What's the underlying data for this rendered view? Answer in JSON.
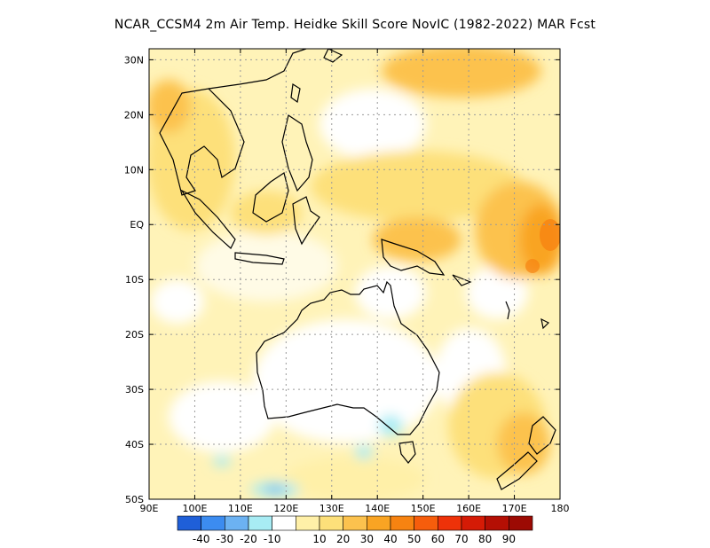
{
  "title": "NCAR_CCSM4  2m Air Temp. Heidke Skill Score NovIC (1982-2022) MAR Fcst",
  "map": {
    "lon_range": [
      90,
      180
    ],
    "lat_range": [
      -50,
      32
    ],
    "lon_ticks": [
      {
        "value": 90,
        "label": "90E"
      },
      {
        "value": 100,
        "label": "100E"
      },
      {
        "value": 110,
        "label": "110E"
      },
      {
        "value": 120,
        "label": "120E"
      },
      {
        "value": 130,
        "label": "130E"
      },
      {
        "value": 140,
        "label": "140E"
      },
      {
        "value": 150,
        "label": "150E"
      },
      {
        "value": 160,
        "label": "160E"
      },
      {
        "value": 170,
        "label": "170E"
      },
      {
        "value": 180,
        "label": "180"
      }
    ],
    "lat_ticks": [
      {
        "value": 30,
        "label": "30N"
      },
      {
        "value": 20,
        "label": "20N"
      },
      {
        "value": 10,
        "label": "10N"
      },
      {
        "value": 0,
        "label": "EQ"
      },
      {
        "value": -10,
        "label": "10S"
      },
      {
        "value": -20,
        "label": "20S"
      },
      {
        "value": -30,
        "label": "30S"
      },
      {
        "value": -40,
        "label": "40S"
      },
      {
        "value": -50,
        "label": "50S"
      }
    ],
    "grid": "dotted"
  },
  "colorbar": {
    "colors": [
      "#1f5fd8",
      "#3c8cf0",
      "#6cb2f2",
      "#a8ecf4",
      "#ffffff",
      "#fff0a8",
      "#fde07a",
      "#fcc24e",
      "#f9a423",
      "#f78311",
      "#f65d0c",
      "#ee3209",
      "#d51b06",
      "#b40f04",
      "#9c0a03"
    ],
    "labels": [
      "-40",
      "-30",
      "-20",
      "-10",
      "10",
      "20",
      "30",
      "40",
      "50",
      "60",
      "70",
      "80",
      "90"
    ]
  },
  "chart_data": {
    "type": "heatmap",
    "title": "NCAR_CCSM4  2m Air Temp. Heidke Skill Score NovIC (1982-2022) MAR Fcst",
    "xlabel": "",
    "ylabel": "",
    "xlim": [
      90,
      180
    ],
    "ylim": [
      -50,
      32
    ],
    "levels": [
      -40,
      -30,
      -20,
      -10,
      10,
      20,
      30,
      40,
      50,
      60,
      70,
      80,
      90
    ],
    "regions": [
      {
        "lon": [
          165,
          180
        ],
        "lat": [
          -8,
          3
        ],
        "value": 50
      },
      {
        "lon": [
          170,
          180
        ],
        "lat": [
          -5,
          0
        ],
        "value": 65
      },
      {
        "lon": [
          150,
          170
        ],
        "lat": [
          20,
          30
        ],
        "value": 30
      },
      {
        "lon": [
          140,
          180
        ],
        "lat": [
          -15,
          5
        ],
        "value": 30
      },
      {
        "lon": [
          160,
          175
        ],
        "lat": [
          -45,
          -35
        ],
        "value": 30
      },
      {
        "lon": [
          90,
          125
        ],
        "lat": [
          5,
          30
        ],
        "value": 20
      },
      {
        "lon": [
          120,
          150
        ],
        "lat": [
          -35,
          -15
        ],
        "value": 5
      },
      {
        "lon": [
          130,
          140
        ],
        "lat": [
          -40,
          -35
        ],
        "value": -15
      },
      {
        "lon": [
          110,
          120
        ],
        "lat": [
          -50,
          -48
        ],
        "value": -25
      }
    ]
  }
}
